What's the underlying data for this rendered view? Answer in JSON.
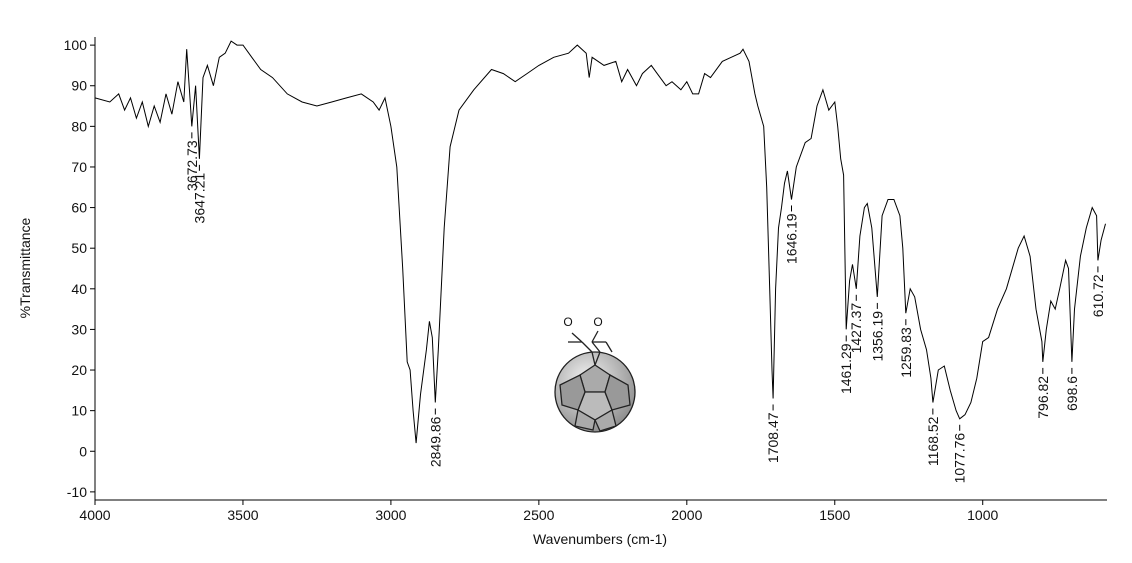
{
  "chart_data": {
    "type": "line",
    "xlabel": "Wavenumbers (cm-1)",
    "ylabel": "%Transmittance",
    "x": [
      4000,
      3950,
      3920,
      3900,
      3880,
      3860,
      3840,
      3820,
      3800,
      3780,
      3760,
      3740,
      3720,
      3700,
      3690,
      3680,
      3672.73,
      3660,
      3647.21,
      3635,
      3620,
      3600,
      3580,
      3560,
      3540,
      3520,
      3500,
      3470,
      3440,
      3400,
      3350,
      3300,
      3250,
      3200,
      3150,
      3100,
      3060,
      3040,
      3020,
      3000,
      2980,
      2960,
      2945,
      2935,
      2925,
      2915,
      2900,
      2880,
      2870,
      2860,
      2849.86,
      2840,
      2820,
      2800,
      2770,
      2720,
      2660,
      2620,
      2580,
      2540,
      2500,
      2450,
      2400,
      2370,
      2340,
      2330,
      2320,
      2280,
      2240,
      2220,
      2200,
      2170,
      2150,
      2120,
      2100,
      2070,
      2050,
      2020,
      2000,
      1980,
      1960,
      1940,
      1920,
      1880,
      1850,
      1820,
      1810,
      1790,
      1770,
      1760,
      1740,
      1730,
      1720,
      1712,
      1708.47,
      1700,
      1690,
      1680,
      1670,
      1660,
      1646.19,
      1630,
      1600,
      1580,
      1560,
      1540,
      1520,
      1500,
      1490,
      1480,
      1470,
      1461.29,
      1450,
      1440,
      1427.37,
      1415,
      1400,
      1390,
      1375,
      1356.19,
      1340,
      1320,
      1300,
      1280,
      1270,
      1259.83,
      1245,
      1230,
      1210,
      1190,
      1175,
      1168.52,
      1150,
      1130,
      1110,
      1090,
      1077.76,
      1060,
      1040,
      1020,
      1000,
      980,
      950,
      920,
      880,
      860,
      840,
      820,
      800,
      796.82,
      785,
      770,
      755,
      740,
      720,
      710,
      698.6,
      690,
      670,
      650,
      630,
      615,
      610.72,
      600,
      585
    ],
    "values": [
      87,
      86,
      88,
      84,
      87,
      82,
      86,
      80,
      85,
      81,
      88,
      83,
      91,
      86,
      99,
      88,
      80,
      90,
      72,
      92,
      95,
      90,
      97,
      98,
      101,
      100,
      100,
      97,
      94,
      92,
      88,
      86,
      85,
      86,
      87,
      88,
      86,
      84,
      87,
      80,
      70,
      45,
      22,
      20,
      10,
      2,
      14,
      25,
      32,
      28,
      12,
      25,
      55,
      75,
      84,
      89,
      94,
      93,
      91,
      93,
      95,
      97,
      98,
      100,
      98,
      92,
      97,
      95,
      96,
      91,
      94,
      90,
      93,
      95,
      93,
      90,
      91,
      89,
      91,
      88,
      88,
      93,
      92,
      96,
      97,
      98,
      99,
      96,
      88,
      85,
      80,
      65,
      40,
      20,
      13,
      40,
      55,
      60,
      66,
      69,
      62,
      70,
      76,
      77,
      85,
      89,
      84,
      86,
      80,
      72,
      68,
      30,
      42,
      46,
      40,
      53,
      60,
      61,
      55,
      38,
      58,
      62,
      62,
      58,
      50,
      34,
      40,
      38,
      30,
      25,
      18,
      12,
      20,
      21,
      15,
      10,
      8,
      9,
      12,
      18,
      27,
      28,
      35,
      40,
      50,
      53,
      48,
      35,
      27,
      22,
      30,
      37,
      35,
      40,
      47,
      45,
      22,
      35,
      48,
      55,
      60,
      58,
      47,
      52,
      56
    ],
    "color": "#000000",
    "peak_labels": [
      3672.73,
      3647.21,
      2849.86,
      1708.47,
      1646.19,
      1461.29,
      1427.37,
      1356.19,
      1259.83,
      1168.52,
      1077.76,
      796.82,
      698.6,
      610.72
    ],
    "structure_atoms": [
      "O",
      "O"
    ],
    "xlim": [
      4000,
      580
    ],
    "ylim": [
      -12,
      102
    ],
    "xticks": [
      4000,
      3500,
      3000,
      2500,
      2000,
      1500,
      1000
    ],
    "yticks": [
      -10,
      0,
      10,
      20,
      30,
      40,
      50,
      60,
      70,
      80,
      90,
      100
    ]
  }
}
